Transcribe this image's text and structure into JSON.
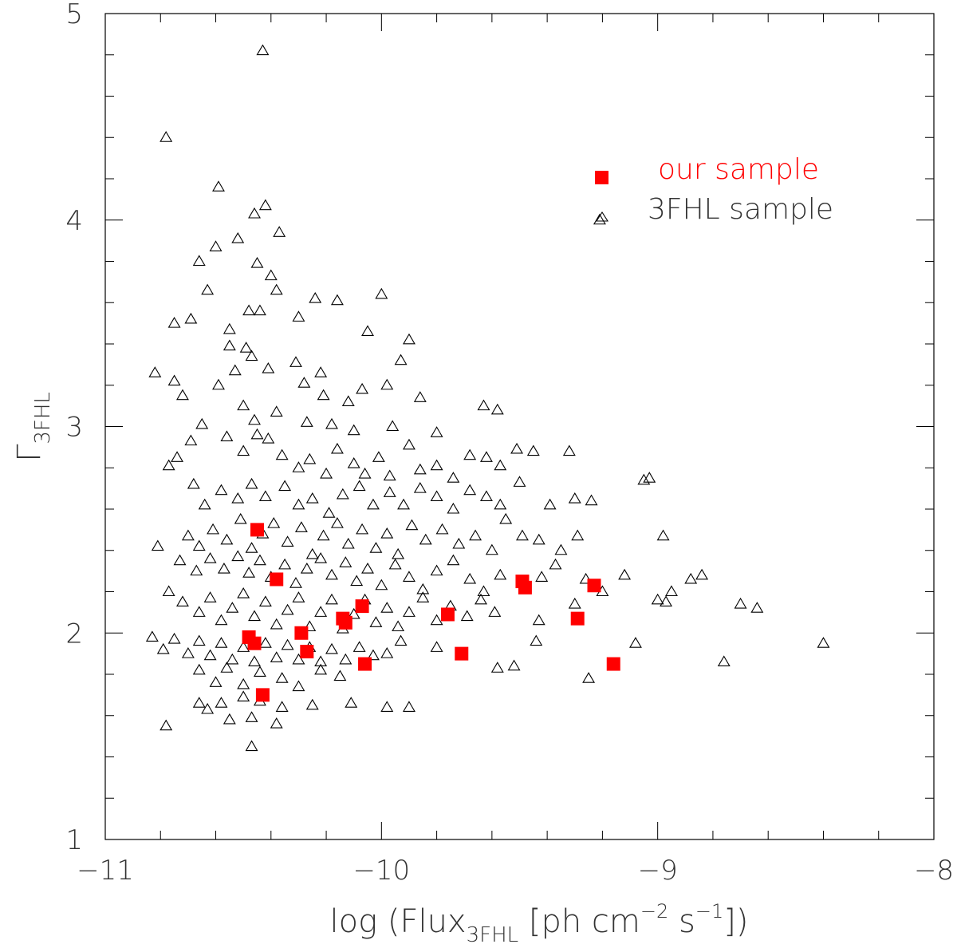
{
  "chart_data": {
    "type": "scatter",
    "title": "",
    "xlabel": "log (Flux",
    "xlabel_sub": "3FHL",
    "xlabel_unit_prefix": "[ph cm",
    "xlabel_exp1": "−2",
    "xlabel_mid": "s",
    "xlabel_exp2": "−1",
    "xlabel_end": "])",
    "ylabel": "Γ",
    "ylabel_sub": "3FHL",
    "xlim": [
      -11,
      -8
    ],
    "ylim": [
      1,
      5
    ],
    "x_ticks": [
      -11,
      -10,
      -9,
      -8
    ],
    "x_tick_labels": [
      "−11",
      "−10",
      "−9",
      "−8"
    ],
    "y_ticks": [
      1,
      2,
      3,
      4,
      5
    ],
    "y_tick_labels": [
      "1",
      "2",
      "3",
      "4",
      "5"
    ],
    "legend_position": "top-right",
    "grid": false,
    "series": [
      {
        "name": "our sample",
        "marker": "filled-square",
        "color": "#ff0000",
        "x": [
          -10.45,
          -10.48,
          -10.46,
          -10.43,
          -10.38,
          -10.29,
          -10.27,
          -10.14,
          -10.13,
          -10.07,
          -10.06,
          -9.76,
          -9.71,
          -9.49,
          -9.48,
          -9.29,
          -9.23,
          -9.16
        ],
        "y": [
          2.5,
          1.98,
          1.95,
          1.7,
          2.26,
          2.0,
          1.91,
          2.07,
          2.05,
          2.13,
          1.85,
          2.09,
          1.9,
          2.25,
          2.22,
          2.07,
          2.23,
          1.85
        ]
      },
      {
        "name": "3FHL sample",
        "marker": "open-triangle",
        "color": "#000000",
        "points": [
          [
            -10.43,
            4.82
          ],
          [
            -10.78,
            4.4
          ],
          [
            -10.59,
            4.16
          ],
          [
            -10.52,
            3.91
          ],
          [
            -10.6,
            3.87
          ],
          [
            -10.66,
            3.8
          ],
          [
            -10.42,
            4.07
          ],
          [
            -10.46,
            4.03
          ],
          [
            -10.37,
            3.94
          ],
          [
            -10.45,
            3.79
          ],
          [
            -10.4,
            3.73
          ],
          [
            -10.38,
            3.66
          ],
          [
            -10.48,
            3.56
          ],
          [
            -10.44,
            3.56
          ],
          [
            -10.55,
            3.47
          ],
          [
            -10.63,
            3.66
          ],
          [
            -10.69,
            3.52
          ],
          [
            -10.75,
            3.5
          ],
          [
            -10.3,
            3.53
          ],
          [
            -10.24,
            3.62
          ],
          [
            -10.16,
            3.61
          ],
          [
            -10.0,
            3.64
          ],
          [
            -10.05,
            3.46
          ],
          [
            -9.9,
            3.42
          ],
          [
            -9.93,
            3.32
          ],
          [
            -10.55,
            3.39
          ],
          [
            -10.49,
            3.38
          ],
          [
            -10.47,
            3.34
          ],
          [
            -10.41,
            3.28
          ],
          [
            -10.31,
            3.31
          ],
          [
            -10.28,
            3.21
          ],
          [
            -10.22,
            3.26
          ],
          [
            -10.21,
            3.15
          ],
          [
            -10.12,
            3.12
          ],
          [
            -10.07,
            3.18
          ],
          [
            -9.98,
            3.2
          ],
          [
            -9.86,
            3.14
          ],
          [
            -10.82,
            3.26
          ],
          [
            -10.75,
            3.22
          ],
          [
            -10.72,
            3.15
          ],
          [
            -10.59,
            3.2
          ],
          [
            -10.53,
            3.27
          ],
          [
            -10.5,
            3.1
          ],
          [
            -10.46,
            3.03
          ],
          [
            -10.38,
            3.07
          ],
          [
            -10.27,
            3.02
          ],
          [
            -10.18,
            3.01
          ],
          [
            -10.1,
            2.98
          ],
          [
            -9.96,
            3.0
          ],
          [
            -9.8,
            2.97
          ],
          [
            -9.63,
            3.1
          ],
          [
            -9.58,
            3.08
          ],
          [
            -10.77,
            2.81
          ],
          [
            -10.74,
            2.85
          ],
          [
            -10.69,
            2.93
          ],
          [
            -10.65,
            3.01
          ],
          [
            -10.56,
            2.95
          ],
          [
            -10.5,
            2.88
          ],
          [
            -10.45,
            2.96
          ],
          [
            -10.41,
            2.94
          ],
          [
            -10.36,
            2.86
          ],
          [
            -10.3,
            2.8
          ],
          [
            -10.26,
            2.84
          ],
          [
            -10.2,
            2.77
          ],
          [
            -10.16,
            2.89
          ],
          [
            -10.1,
            2.82
          ],
          [
            -10.06,
            2.77
          ],
          [
            -10.01,
            2.85
          ],
          [
            -9.97,
            2.76
          ],
          [
            -9.9,
            2.91
          ],
          [
            -9.86,
            2.79
          ],
          [
            -9.8,
            2.81
          ],
          [
            -9.74,
            2.75
          ],
          [
            -9.68,
            2.86
          ],
          [
            -9.62,
            2.85
          ],
          [
            -9.57,
            2.81
          ],
          [
            -9.51,
            2.89
          ],
          [
            -9.45,
            2.88
          ],
          [
            -9.32,
            2.88
          ],
          [
            -10.68,
            2.72
          ],
          [
            -10.64,
            2.62
          ],
          [
            -10.58,
            2.69
          ],
          [
            -10.52,
            2.65
          ],
          [
            -10.47,
            2.72
          ],
          [
            -10.42,
            2.66
          ],
          [
            -10.35,
            2.71
          ],
          [
            -10.3,
            2.62
          ],
          [
            -10.25,
            2.65
          ],
          [
            -10.19,
            2.58
          ],
          [
            -10.14,
            2.67
          ],
          [
            -10.08,
            2.71
          ],
          [
            -10.03,
            2.62
          ],
          [
            -9.97,
            2.68
          ],
          [
            -9.92,
            2.62
          ],
          [
            -9.86,
            2.7
          ],
          [
            -9.8,
            2.66
          ],
          [
            -9.74,
            2.6
          ],
          [
            -9.68,
            2.69
          ],
          [
            -9.62,
            2.66
          ],
          [
            -9.57,
            2.62
          ],
          [
            -9.5,
            2.73
          ],
          [
            -9.39,
            2.62
          ],
          [
            -9.3,
            2.65
          ],
          [
            -9.24,
            2.64
          ],
          [
            -9.05,
            2.74
          ],
          [
            -9.03,
            2.75
          ],
          [
            -10.7,
            2.47
          ],
          [
            -10.66,
            2.42
          ],
          [
            -10.61,
            2.5
          ],
          [
            -10.56,
            2.45
          ],
          [
            -10.51,
            2.55
          ],
          [
            -10.47,
            2.41
          ],
          [
            -10.43,
            2.48
          ],
          [
            -10.39,
            2.53
          ],
          [
            -10.34,
            2.44
          ],
          [
            -10.29,
            2.51
          ],
          [
            -10.25,
            2.38
          ],
          [
            -10.21,
            2.47
          ],
          [
            -10.16,
            2.53
          ],
          [
            -10.12,
            2.43
          ],
          [
            -10.07,
            2.5
          ],
          [
            -10.02,
            2.41
          ],
          [
            -9.98,
            2.48
          ],
          [
            -9.94,
            2.38
          ],
          [
            -9.89,
            2.52
          ],
          [
            -9.84,
            2.45
          ],
          [
            -9.78,
            2.5
          ],
          [
            -9.72,
            2.43
          ],
          [
            -9.66,
            2.47
          ],
          [
            -9.6,
            2.4
          ],
          [
            -9.55,
            2.55
          ],
          [
            -9.49,
            2.47
          ],
          [
            -9.43,
            2.45
          ],
          [
            -9.35,
            2.4
          ],
          [
            -9.29,
            2.47
          ],
          [
            -8.98,
            2.47
          ],
          [
            -10.81,
            2.42
          ],
          [
            -10.73,
            2.35
          ],
          [
            -10.67,
            2.3
          ],
          [
            -10.62,
            2.36
          ],
          [
            -10.57,
            2.31
          ],
          [
            -10.52,
            2.37
          ],
          [
            -10.48,
            2.29
          ],
          [
            -10.44,
            2.35
          ],
          [
            -10.4,
            2.27
          ],
          [
            -10.35,
            2.33
          ],
          [
            -10.31,
            2.24
          ],
          [
            -10.27,
            2.31
          ],
          [
            -10.22,
            2.36
          ],
          [
            -10.18,
            2.28
          ],
          [
            -10.13,
            2.34
          ],
          [
            -10.09,
            2.25
          ],
          [
            -10.05,
            2.31
          ],
          [
            -10.0,
            2.23
          ],
          [
            -9.95,
            2.33
          ],
          [
            -9.9,
            2.27
          ],
          [
            -9.85,
            2.21
          ],
          [
            -9.8,
            2.3
          ],
          [
            -9.74,
            2.35
          ],
          [
            -9.68,
            2.26
          ],
          [
            -9.63,
            2.2
          ],
          [
            -9.57,
            2.28
          ],
          [
            -9.48,
            2.23
          ],
          [
            -9.42,
            2.27
          ],
          [
            -9.37,
            2.33
          ],
          [
            -9.26,
            2.26
          ],
          [
            -9.2,
            2.2
          ],
          [
            -9.12,
            2.28
          ],
          [
            -8.88,
            2.26
          ],
          [
            -8.84,
            2.28
          ],
          [
            -8.95,
            2.2
          ],
          [
            -9.0,
            2.16
          ],
          [
            -8.97,
            2.15
          ],
          [
            -10.77,
            2.2
          ],
          [
            -10.72,
            2.15
          ],
          [
            -10.66,
            2.1
          ],
          [
            -10.62,
            2.17
          ],
          [
            -10.58,
            2.06
          ],
          [
            -10.54,
            2.12
          ],
          [
            -10.5,
            2.19
          ],
          [
            -10.46,
            2.08
          ],
          [
            -10.42,
            2.15
          ],
          [
            -10.38,
            2.04
          ],
          [
            -10.34,
            2.11
          ],
          [
            -10.3,
            2.17
          ],
          [
            -10.26,
            2.03
          ],
          [
            -10.22,
            2.1
          ],
          [
            -10.18,
            2.16
          ],
          [
            -10.14,
            2.02
          ],
          [
            -10.1,
            2.09
          ],
          [
            -10.06,
            2.16
          ],
          [
            -10.02,
            2.05
          ],
          [
            -9.98,
            2.12
          ],
          [
            -9.94,
            2.03
          ],
          [
            -9.9,
            2.1
          ],
          [
            -9.85,
            2.17
          ],
          [
            -9.8,
            2.06
          ],
          [
            -9.75,
            2.13
          ],
          [
            -9.69,
            2.08
          ],
          [
            -9.64,
            2.16
          ],
          [
            -9.59,
            2.1
          ],
          [
            -9.43,
            2.06
          ],
          [
            -9.3,
            2.14
          ],
          [
            -8.7,
            2.14
          ],
          [
            -8.64,
            2.12
          ],
          [
            -10.83,
            1.98
          ],
          [
            -10.79,
            1.92
          ],
          [
            -10.75,
            1.97
          ],
          [
            -10.7,
            1.9
          ],
          [
            -10.66,
            1.96
          ],
          [
            -10.62,
            1.89
          ],
          [
            -10.58,
            1.95
          ],
          [
            -10.54,
            1.87
          ],
          [
            -10.5,
            1.93
          ],
          [
            -10.46,
            1.86
          ],
          [
            -10.42,
            1.95
          ],
          [
            -10.38,
            1.88
          ],
          [
            -10.34,
            1.94
          ],
          [
            -10.3,
            1.87
          ],
          [
            -10.26,
            1.93
          ],
          [
            -10.22,
            1.86
          ],
          [
            -10.18,
            1.92
          ],
          [
            -10.13,
            1.87
          ],
          [
            -10.08,
            1.93
          ],
          [
            -10.03,
            1.89
          ],
          [
            -9.98,
            1.9
          ],
          [
            -9.93,
            1.96
          ],
          [
            -9.8,
            1.93
          ],
          [
            -9.58,
            1.83
          ],
          [
            -9.52,
            1.84
          ],
          [
            -9.44,
            1.96
          ],
          [
            -9.25,
            1.78
          ],
          [
            -9.08,
            1.95
          ],
          [
            -8.76,
            1.86
          ],
          [
            -8.4,
            1.95
          ],
          [
            -10.66,
            1.82
          ],
          [
            -10.6,
            1.76
          ],
          [
            -10.56,
            1.83
          ],
          [
            -10.5,
            1.75
          ],
          [
            -10.44,
            1.81
          ],
          [
            -10.36,
            1.78
          ],
          [
            -10.3,
            1.74
          ],
          [
            -10.22,
            1.82
          ],
          [
            -10.15,
            1.79
          ],
          [
            -10.66,
            1.66
          ],
          [
            -10.63,
            1.63
          ],
          [
            -10.58,
            1.66
          ],
          [
            -10.5,
            1.69
          ],
          [
            -10.44,
            1.67
          ],
          [
            -10.36,
            1.64
          ],
          [
            -10.25,
            1.65
          ],
          [
            -10.11,
            1.66
          ],
          [
            -9.98,
            1.64
          ],
          [
            -9.9,
            1.64
          ],
          [
            -10.78,
            1.55
          ],
          [
            -10.55,
            1.58
          ],
          [
            -10.47,
            1.59
          ],
          [
            -10.38,
            1.56
          ],
          [
            -10.47,
            1.45
          ],
          [
            -9.21,
            4.0
          ]
        ]
      }
    ]
  },
  "legend": {
    "our_sample": "our sample",
    "our_sample_color": "#ff0000",
    "fhl_sample": "3FHL sample",
    "fhl_sample_color": "#333333"
  }
}
